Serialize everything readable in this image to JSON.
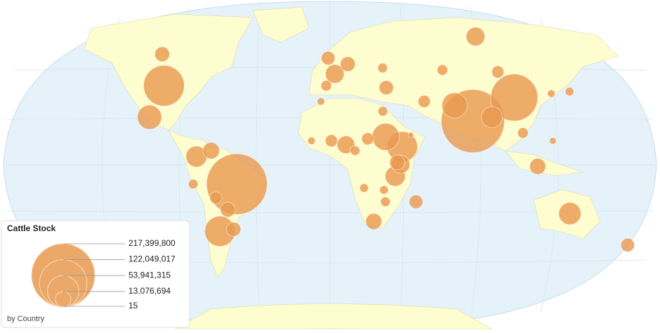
{
  "chart_data": {
    "type": "bubble-map",
    "title": "Cattle Stock",
    "subtitle": "by Country",
    "color": "#e8994f",
    "size_legend": [
      {
        "value": 217399800,
        "label": "217,399,800"
      },
      {
        "value": 122049017,
        "label": "122,049,017"
      },
      {
        "value": 53941315,
        "label": "53,941,315"
      },
      {
        "value": 13076694,
        "label": "13,076,694"
      },
      {
        "value": 15,
        "label": "15"
      }
    ],
    "bubbles": [
      {
        "lon": 79,
        "lat": 22,
        "value": 217399800
      },
      {
        "lon": -52,
        "lat": -10,
        "value": 200000000
      },
      {
        "lon": 105,
        "lat": 34,
        "value": 120000000
      },
      {
        "lon": -98,
        "lat": 40,
        "value": 90000000
      },
      {
        "lon": 39,
        "lat": 9,
        "value": 50000000
      },
      {
        "lon": -64,
        "lat": -34,
        "value": 50000000
      },
      {
        "lon": 30,
        "lat": 14,
        "value": 40000000
      },
      {
        "lon": -102,
        "lat": 24,
        "value": 32000000
      },
      {
        "lon": 134,
        "lat": -25,
        "value": 27000000
      },
      {
        "lon": 70,
        "lat": 30,
        "value": 35000000
      },
      {
        "lon": 90,
        "lat": 24,
        "value": 24000000
      },
      {
        "lon": -74,
        "lat": 4,
        "value": 24000000
      },
      {
        "lon": 35,
        "lat": -6,
        "value": 22000000
      },
      {
        "lon": 95,
        "lat": 65,
        "value": 19000000
      },
      {
        "lon": 2,
        "lat": 46,
        "value": 19000000
      },
      {
        "lon": 8,
        "lat": 10,
        "value": 17000000
      },
      {
        "lon": 38,
        "lat": 0,
        "value": 18000000
      },
      {
        "lon": 36,
        "lat": 1,
        "value": 12000000
      },
      {
        "lon": -58,
        "lat": -23,
        "value": 12000000
      },
      {
        "lon": 113,
        "lat": -1,
        "value": 14000000
      },
      {
        "lon": -106,
        "lat": 56,
        "value": 12000000
      },
      {
        "lon": 24,
        "lat": -29,
        "value": 14000000
      },
      {
        "lon": 174,
        "lat": -41,
        "value": 10000000
      },
      {
        "lon": 47,
        "lat": -19,
        "value": 10000000
      },
      {
        "lon": 32,
        "lat": 39,
        "value": 11000000
      },
      {
        "lon": 53,
        "lat": 32,
        "value": 8000000
      },
      {
        "lon": 100,
        "lat": 47,
        "value": 8000000
      },
      {
        "lon": -3,
        "lat": 40,
        "value": 6000000
      },
      {
        "lon": 10,
        "lat": 51,
        "value": 12000000
      },
      {
        "lon": -2,
        "lat": 54,
        "value": 10000000
      },
      {
        "lon": 20,
        "lat": 13,
        "value": 8000000
      },
      {
        "lon": 0,
        "lat": 12,
        "value": 8000000
      },
      {
        "lon": -6,
        "lat": 32,
        "value": 3000000
      },
      {
        "lon": 67,
        "lat": 48,
        "value": 6000000
      },
      {
        "lon": 31,
        "lat": 49,
        "value": 5000000
      },
      {
        "lon": -56,
        "lat": -33,
        "value": 11000000
      },
      {
        "lon": -66,
        "lat": 7,
        "value": 15000000
      },
      {
        "lon": -76,
        "lat": -10,
        "value": 5000000
      },
      {
        "lon": -64,
        "lat": -17,
        "value": 8000000
      },
      {
        "lon": 18,
        "lat": -12,
        "value": 4000000
      },
      {
        "lon": 29,
        "lat": -13,
        "value": 4000000
      },
      {
        "lon": 30,
        "lat": -19,
        "value": 5000000
      },
      {
        "lon": 106,
        "lat": 16,
        "value": 6000000
      },
      {
        "lon": 122,
        "lat": 12,
        "value": 2500000
      },
      {
        "lon": 138,
        "lat": 37,
        "value": 4000000
      },
      {
        "lon": 127,
        "lat": 36,
        "value": 3000000
      },
      {
        "lon": 13,
        "lat": 7,
        "value": 5000000
      },
      {
        "lon": -11,
        "lat": 12,
        "value": 3000000
      },
      {
        "lon": 44,
        "lat": 15,
        "value": 1500000
      },
      {
        "lon": 29,
        "lat": 27,
        "value": 5000000
      }
    ]
  }
}
